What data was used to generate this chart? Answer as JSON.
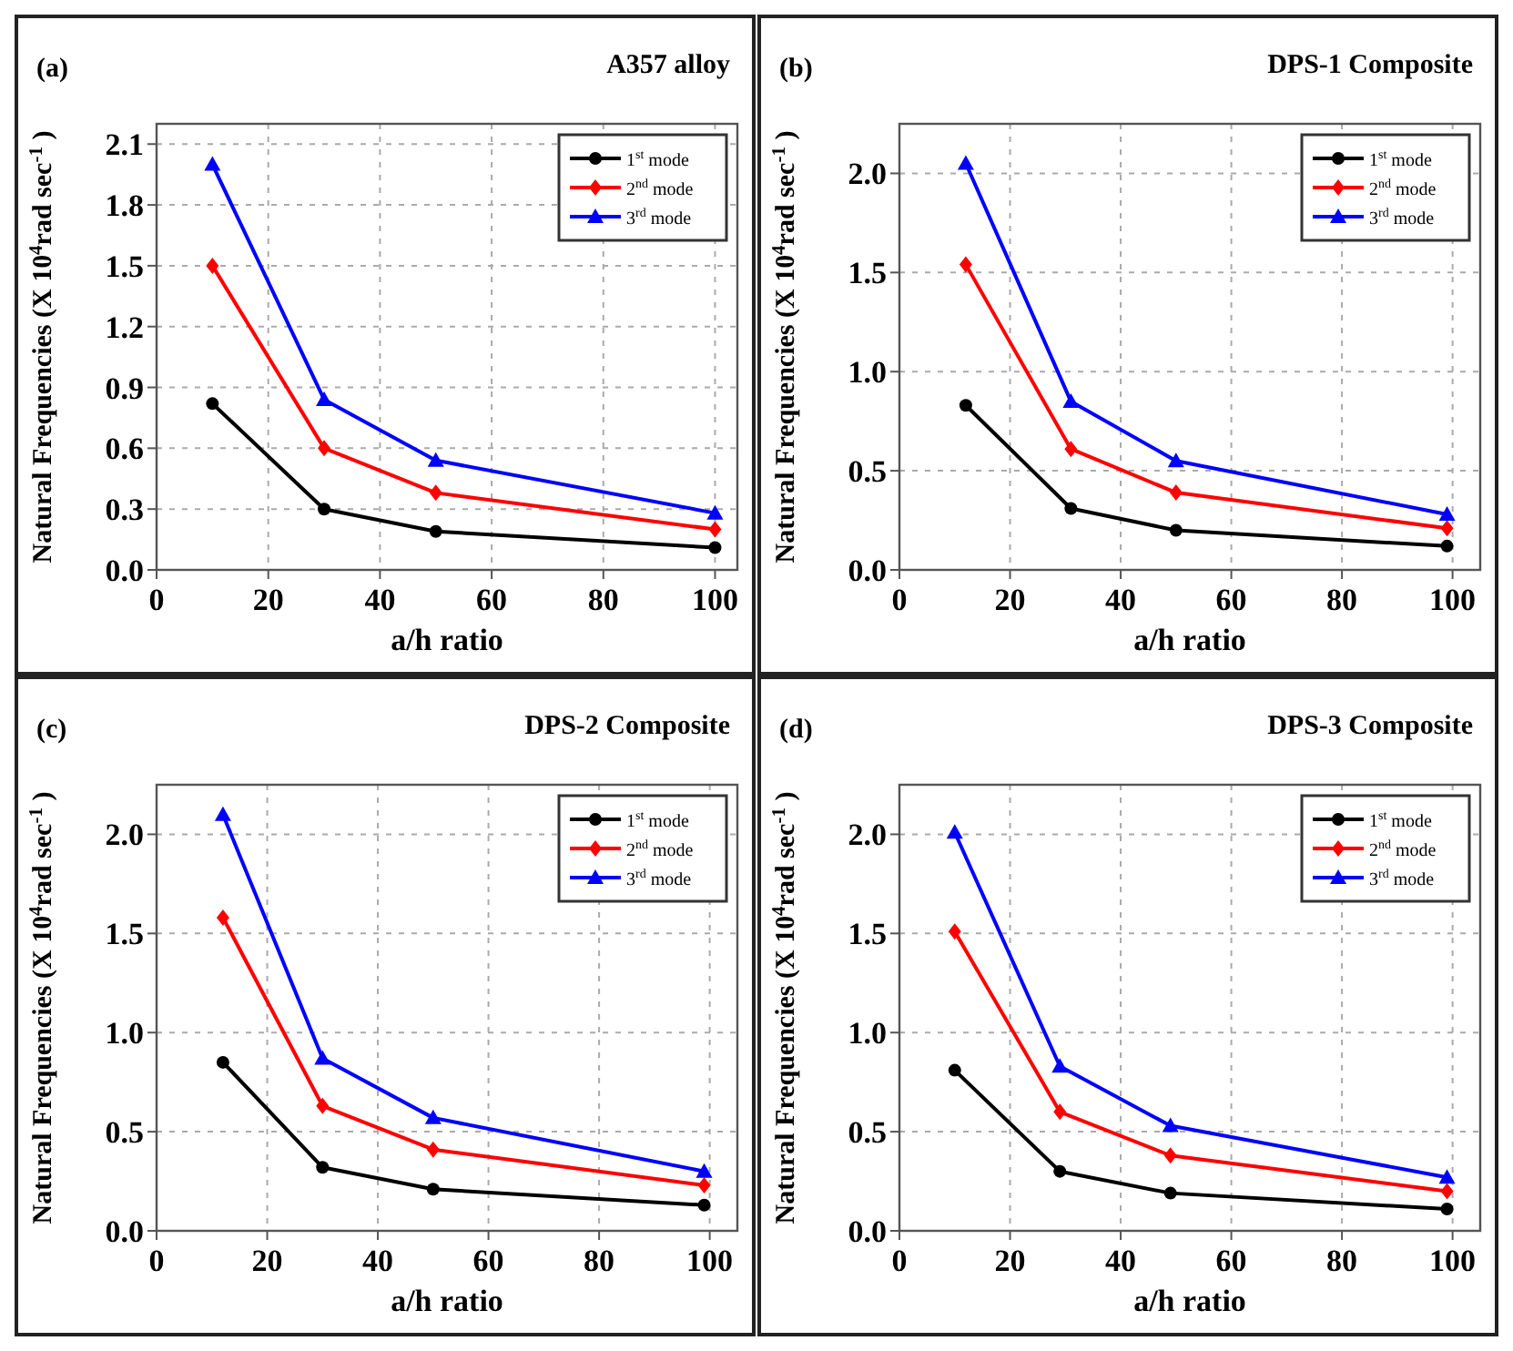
{
  "chart_data": [
    {
      "type": "line",
      "title": "A357 alloy",
      "annotations": [
        "(a)"
      ],
      "xlabel": "a/h ratio",
      "ylabel": "Natural Frequencies (X 10$^{4}$rad sec$^{-1}$ )",
      "xlim": [
        0,
        104
      ],
      "xticks": [
        0,
        20,
        40,
        60,
        80,
        100
      ],
      "ylim": [
        0,
        2.2
      ],
      "yticks": [
        {
          "value": 0,
          "label": "0.0"
        },
        0.3,
        0.6,
        0.9,
        1.2,
        1.5,
        1.8,
        2.1
      ],
      "grid": true,
      "legend": "top right",
      "line_style": "solid",
      "series": [
        {
          "name": "1$^{st}$ mode",
          "color": "#000000",
          "marker": "circle",
          "x": [
            10,
            30,
            50,
            100
          ],
          "values": [
            0.82,
            0.3,
            0.19,
            0.11
          ]
        },
        {
          "name": "2$^{nd}$ mode",
          "color": "#ff0000",
          "marker": "diamond",
          "x": [
            10,
            30,
            50,
            100
          ],
          "values": [
            1.5,
            0.6,
            0.38,
            0.2
          ]
        },
        {
          "name": "3$^{rd}$ mode",
          "color": "#0000ff",
          "marker": "triangle",
          "x": [
            10,
            30,
            50,
            100
          ],
          "values": [
            2.0,
            0.84,
            0.54,
            0.28
          ]
        }
      ]
    },
    {
      "type": "line",
      "title": "DPS-1 Composite",
      "annotations": [
        "(b)"
      ],
      "xlabel": "a/h ratio",
      "ylabel": "Natural Frequencies (X 10$^{4}$rad sec$^{-1}$ )",
      "xlim": [
        0,
        105
      ],
      "xticks": [
        0,
        20,
        40,
        60,
        80,
        100
      ],
      "ylim": [
        0,
        2.25
      ],
      "yticks": [
        {
          "value": 0,
          "label": "0.0"
        },
        0.5,
        {
          "value": 1,
          "label": "1.0"
        },
        1.5,
        {
          "value": 2,
          "label": "2.0"
        }
      ],
      "grid": true,
      "legend": "top right",
      "line_style": "solid",
      "series": [
        {
          "name": "1$^{st}$ mode",
          "color": "#000000",
          "marker": "circle",
          "x": [
            12,
            31,
            50,
            99
          ],
          "values": [
            0.83,
            0.31,
            0.2,
            0.12
          ]
        },
        {
          "name": "2$^{nd}$ mode",
          "color": "#ff0000",
          "marker": "diamond",
          "x": [
            12,
            31,
            50,
            99
          ],
          "values": [
            1.54,
            0.61,
            0.39,
            0.21
          ]
        },
        {
          "name": "3$^{rd}$ mode",
          "color": "#0000ff",
          "marker": "triangle",
          "x": [
            12,
            31,
            50,
            99
          ],
          "values": [
            2.05,
            0.85,
            0.55,
            0.28
          ]
        }
      ]
    },
    {
      "type": "line",
      "title": "DPS-2 Composite",
      "annotations": [
        "(c)"
      ],
      "xlabel": "a/h ratio",
      "ylabel": "Natural Frequencies (X 10$^{4}$rad sec$^{-1}$ )",
      "xlim": [
        0,
        105
      ],
      "xticks": [
        0,
        20,
        40,
        60,
        80,
        100
      ],
      "ylim": [
        0,
        2.25
      ],
      "yticks": [
        {
          "value": 0,
          "label": "0.0"
        },
        0.5,
        {
          "value": 1,
          "label": "1.0"
        },
        1.5,
        {
          "value": 2,
          "label": "2.0"
        }
      ],
      "grid": true,
      "legend": "top right",
      "line_style": "solid",
      "series": [
        {
          "name": "1$^{st}$ mode",
          "color": "#000000",
          "marker": "circle",
          "x": [
            12,
            30,
            50,
            99
          ],
          "values": [
            0.85,
            0.32,
            0.21,
            0.13
          ]
        },
        {
          "name": "2$^{nd}$ mode",
          "color": "#ff0000",
          "marker": "diamond",
          "x": [
            12,
            30,
            50,
            99
          ],
          "values": [
            1.58,
            0.63,
            0.41,
            0.23
          ]
        },
        {
          "name": "3$^{rd}$ mode",
          "color": "#0000ff",
          "marker": "triangle",
          "x": [
            12,
            30,
            50,
            99
          ],
          "values": [
            2.1,
            0.87,
            0.57,
            0.3
          ]
        }
      ]
    },
    {
      "type": "line",
      "title": "DPS-3 Composite",
      "annotations": [
        "(d)"
      ],
      "xlabel": "a/h ratio",
      "ylabel": "Natural Frequencies (X 10$^{4}$rad sec$^{-1}$ )",
      "xlim": [
        0,
        105
      ],
      "xticks": [
        0,
        20,
        40,
        60,
        80,
        100
      ],
      "ylim": [
        0,
        2.25
      ],
      "yticks": [
        {
          "value": 0,
          "label": "0.0"
        },
        0.5,
        {
          "value": 1,
          "label": "1.0"
        },
        1.5,
        {
          "value": 2,
          "label": "2.0"
        }
      ],
      "grid": true,
      "legend": "top right",
      "line_style": "solid",
      "series": [
        {
          "name": "1$^{st}$ mode",
          "color": "#000000",
          "marker": "circle",
          "x": [
            10,
            29,
            49,
            99
          ],
          "values": [
            0.81,
            0.3,
            0.19,
            0.11
          ]
        },
        {
          "name": "2$^{nd}$ mode",
          "color": "#ff0000",
          "marker": "diamond",
          "x": [
            10,
            29,
            49,
            99
          ],
          "values": [
            1.51,
            0.6,
            0.38,
            0.2
          ]
        },
        {
          "name": "3$^{rd}$ mode",
          "color": "#0000ff",
          "marker": "triangle",
          "x": [
            10,
            29,
            49,
            99
          ],
          "values": [
            2.01,
            0.83,
            0.53,
            0.27
          ]
        }
      ]
    }
  ]
}
